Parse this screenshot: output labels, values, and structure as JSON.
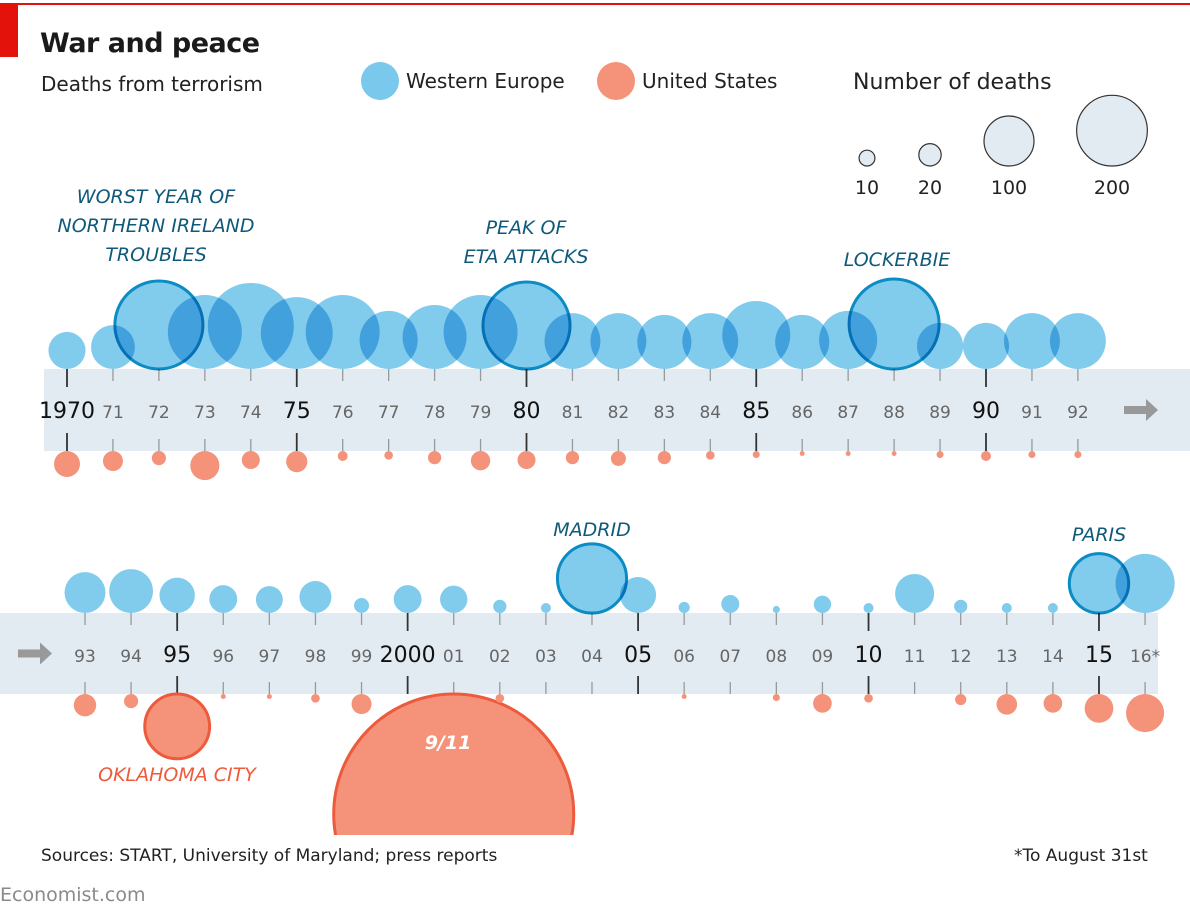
{
  "header": {
    "title": "War and peace",
    "subtitle": "Deaths from terrorism"
  },
  "legend": {
    "series": [
      {
        "label": "Western Europe",
        "color": "#7ac8ec"
      },
      {
        "label": "United States",
        "color": "#f4937a"
      }
    ],
    "size_title": "Number of deaths",
    "size_keys": [
      {
        "value": 10,
        "label": "10"
      },
      {
        "value": 20,
        "label": "20"
      },
      {
        "value": 100,
        "label": "100"
      },
      {
        "value": 200,
        "label": "200"
      }
    ]
  },
  "colors": {
    "western_europe_fill": "#7ac8ec",
    "western_europe_highlight_stroke": "#0b8cc4",
    "united_states_fill": "#f4937a",
    "united_states_highlight_stroke": "#ee5a3c",
    "band": "#e2ebf2",
    "annotation_blue": "#0f5a7a",
    "annotation_red": "#ee5a3c",
    "accent_red": "#e3120b"
  },
  "chart_data": {
    "type": "bubble-timeline",
    "title": "War and peace",
    "subtitle": "Deaths from terrorism",
    "x_unit": "year",
    "size_unit": "Number of deaths",
    "rows": [
      {
        "years": [
          1970,
          1971,
          1972,
          1973,
          1974,
          1975,
          1976,
          1977,
          1978,
          1979,
          1980,
          1981,
          1982,
          1983,
          1984,
          1985,
          1986,
          1987,
          1988,
          1989,
          1990,
          1991,
          1992
        ],
        "tick_labels": [
          "1970",
          "71",
          "72",
          "73",
          "74",
          "75",
          "76",
          "77",
          "78",
          "79",
          "80",
          "81",
          "82",
          "83",
          "84",
          "85",
          "86",
          "87",
          "88",
          "89",
          "90",
          "91",
          "92"
        ],
        "major_ticks": [
          "1970",
          "75",
          "80",
          "85",
          "90"
        ],
        "continues_arrow": "right"
      },
      {
        "years": [
          1993,
          1994,
          1995,
          1996,
          1997,
          1998,
          1999,
          2000,
          2001,
          2002,
          2003,
          2004,
          2005,
          2006,
          2007,
          2008,
          2009,
          2010,
          2011,
          2012,
          2013,
          2014,
          2015,
          2016
        ],
        "tick_labels": [
          "93",
          "94",
          "95",
          "96",
          "97",
          "98",
          "99",
          "2000",
          "01",
          "02",
          "03",
          "04",
          "05",
          "06",
          "07",
          "08",
          "09",
          "10",
          "11",
          "12",
          "13",
          "14",
          "15",
          "16*"
        ],
        "major_ticks": [
          "95",
          "2000",
          "05",
          "10",
          "15"
        ],
        "continues_arrow": "left"
      }
    ],
    "series": [
      {
        "name": "Western Europe",
        "position": "above",
        "values": {
          "1970": 55,
          "1971": 77,
          "1972": 310,
          "1973": 219,
          "1974": 296,
          "1975": 207,
          "1976": 219,
          "1977": 135,
          "1978": 164,
          "1979": 219,
          "1980": 303,
          "1981": 125,
          "1982": 125,
          "1983": 117,
          "1984": 125,
          "1985": 185,
          "1986": 117,
          "1987": 135,
          "1988": 324,
          "1989": 85,
          "1990": 85,
          "1991": 125,
          "1992": 125,
          "1993": 67,
          "1994": 77,
          "1995": 50,
          "1996": 31,
          "1997": 29,
          "1998": 41,
          "1999": 9,
          "2000": 31,
          "2001": 30,
          "2002": 7,
          "2003": 4,
          "2004": 191,
          "2005": 52,
          "2006": 5,
          "2007": 13,
          "2008": 2,
          "2009": 12,
          "2010": 4,
          "2011": 61,
          "2012": 7,
          "2013": 4,
          "2014": 4,
          "2015": 141,
          "2016": 140
        },
        "highlighted": [
          "1972",
          "1980",
          "1988",
          "2004",
          "2015"
        ]
      },
      {
        "name": "United States",
        "position": "below",
        "values": {
          "1970": 27,
          "1971": 16,
          "1972": 8,
          "1973": 34,
          "1974": 13,
          "1975": 18,
          "1976": 4,
          "1977": 3,
          "1978": 7,
          "1979": 15,
          "1980": 13,
          "1981": 7,
          "1982": 9,
          "1983": 7,
          "1984": 3,
          "1985": 2,
          "1986": 1,
          "1987": 1,
          "1988": 1,
          "1989": 2,
          "1990": 4,
          "1991": 2,
          "1992": 2,
          "1993": 20,
          "1994": 8,
          "1995": 168,
          "1996": 1,
          "1997": 1,
          "1998": 3,
          "1999": 16,
          "2000": 0,
          "2001": 2996,
          "2002": 3,
          "2003": 0,
          "2004": 0,
          "2005": 0,
          "2006": 1,
          "2007": 0,
          "2008": 2,
          "2009": 14,
          "2010": 3,
          "2011": 0,
          "2012": 5,
          "2013": 17,
          "2014": 14,
          "2015": 33,
          "2016": 58
        },
        "highlighted": [
          "1995",
          "2001"
        ]
      }
    ],
    "annotations": [
      {
        "text": [
          "WORST YEAR OF",
          "NORTHERN IRELAND",
          "TROUBLES"
        ],
        "year": 1972,
        "series": "Western Europe"
      },
      {
        "text": [
          "PEAK OF",
          "ETA ATTACKS"
        ],
        "year": 1980,
        "series": "Western Europe"
      },
      {
        "text": [
          "LOCKERBIE"
        ],
        "year": 1988,
        "series": "Western Europe"
      },
      {
        "text": [
          "MADRID"
        ],
        "year": 2004,
        "series": "Western Europe"
      },
      {
        "text": [
          "PARIS"
        ],
        "year": 2015,
        "series": "Western Europe"
      },
      {
        "text": [
          "OKLAHOMA CITY"
        ],
        "year": 1995,
        "series": "United States"
      },
      {
        "text": [
          "9/11"
        ],
        "year": 2001,
        "series": "United States"
      }
    ],
    "grid": false,
    "legend_position": "top"
  },
  "footer": {
    "sources": "Sources: START, University of Maryland; press reports",
    "note": "*To August 31st",
    "brand": "Economist.com"
  }
}
